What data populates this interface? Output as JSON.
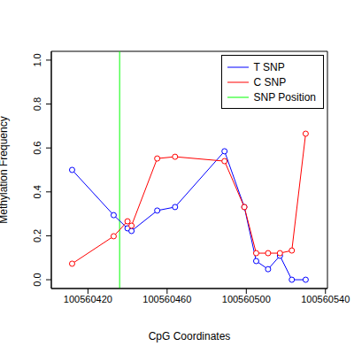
{
  "chart_data": {
    "type": "line",
    "x_label": "CpG Coordinates",
    "y_label": "Methylation Frequency",
    "x": [
      100560412,
      100560433,
      100560440,
      100560442,
      100560455,
      100560464,
      100560489,
      100560499,
      100560505,
      100560511,
      100560517,
      100560523,
      100560530
    ],
    "series": [
      {
        "name": "T SNP",
        "color": "#0000ff",
        "marker": "circle",
        "values": [
          0.5,
          0.294,
          0.234,
          0.222,
          0.315,
          0.331,
          0.585,
          0.331,
          0.085,
          0.048,
          0.109,
          0.0,
          0.0
        ]
      },
      {
        "name": "C SNP",
        "color": "#ff0000",
        "marker": "circle",
        "values": [
          0.073,
          0.198,
          0.266,
          0.246,
          0.552,
          0.56,
          0.54,
          0.331,
          0.121,
          0.121,
          0.121,
          0.133,
          0.665
        ]
      }
    ],
    "annotations": [
      {
        "type": "vline",
        "label": "SNP Position",
        "x": 100560436,
        "color": "#00ff00"
      }
    ],
    "xlim": [
      100560401.5,
      100560541
    ],
    "xticks": [
      100560420,
      100560460,
      100560500,
      100560540
    ],
    "ylim": [
      -0.04,
      1.04
    ],
    "yticks": [
      {
        "value": 0,
        "label": "0.0"
      },
      {
        "value": 0.2,
        "label": "0.2"
      },
      {
        "value": 0.4,
        "label": "0.4"
      },
      {
        "value": 0.6,
        "label": "0.6"
      },
      {
        "value": 0.8,
        "label": "0.8"
      },
      {
        "value": 1.0,
        "label": "1.0"
      }
    ],
    "legend": "upper right"
  }
}
